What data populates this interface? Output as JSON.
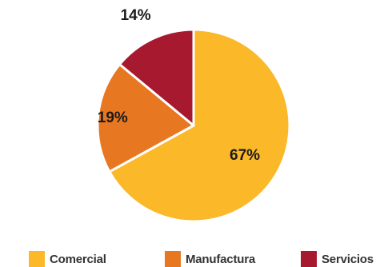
{
  "chart_data": {
    "type": "pie",
    "start_angle_deg": 0,
    "direction": "clockwise",
    "slices": [
      {
        "label": "Comercial",
        "value": 67,
        "display": "67%",
        "color": "#FBB829"
      },
      {
        "label": "Manufactura",
        "value": 19,
        "display": "19%",
        "color": "#E87722"
      },
      {
        "label": "Servicios",
        "value": 14,
        "display": "14%",
        "color": "#A6192E"
      }
    ],
    "legend_placement": "bottom",
    "slice_border_color": "#ffffff",
    "label_color": "#1a1a1a"
  }
}
